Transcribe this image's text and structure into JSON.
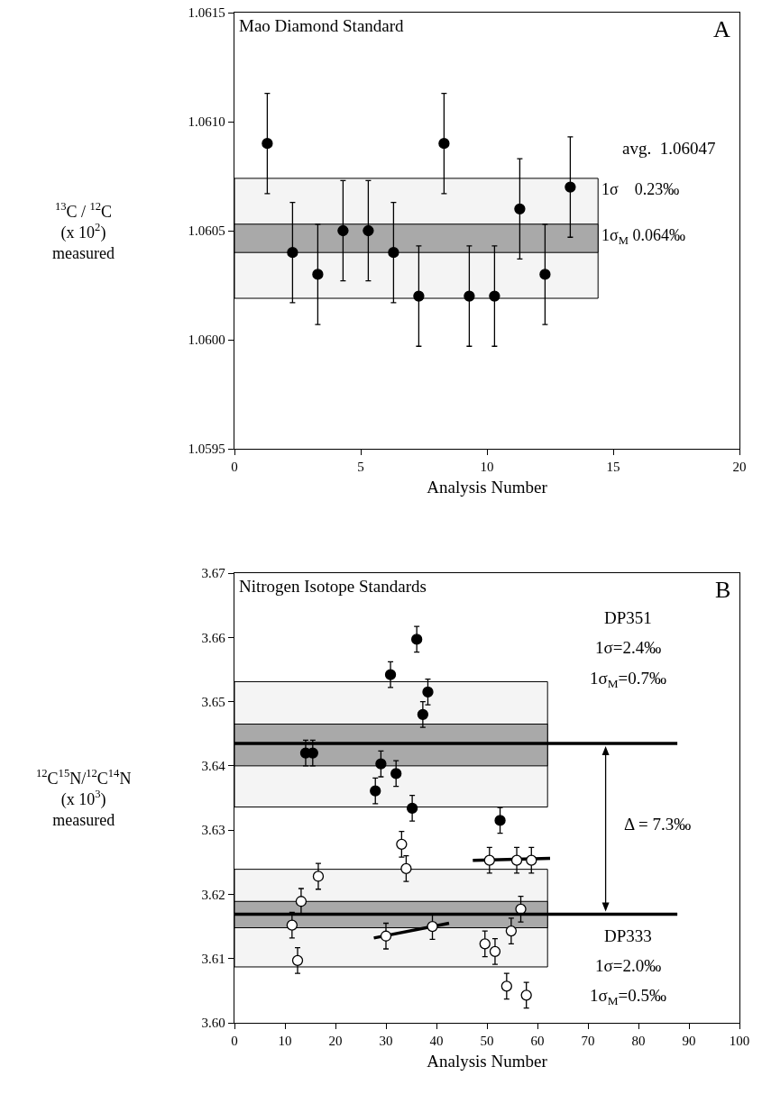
{
  "chart_data": [
    {
      "type": "scatter",
      "title": "Mao Diamond Standard",
      "xlabel": "Analysis Number",
      "ylabel": "$^{13}$C / $^{12}$C\n(x 10$^{2}$)\nmeasured",
      "annotations": [
        "A",
        "avg.  1.06047"
      ],
      "x": [
        1.3,
        2.3,
        3.3,
        4.3,
        5.3,
        6.3,
        7.3,
        8.3,
        9.3,
        10.3,
        11.3,
        12.3,
        13.3
      ],
      "series": [
        {
          "color": "#000000",
          "values": [
            1.0609,
            1.0604,
            1.0603,
            1.0605,
            1.0605,
            1.0604,
            1.0602,
            1.0609,
            1.0602,
            1.0602,
            1.0606,
            1.0603,
            1.0607
          ],
          "errors": [
            0.00023,
            0.00023,
            0.00023,
            0.00023,
            0.00023,
            0.00023,
            0.00023,
            0.00023,
            0.00023,
            0.00023,
            0.00023,
            0.00023,
            0.00023
          ]
        }
      ],
      "bands": [
        {
          "axis": "y",
          "from": 1.06019,
          "to": 1.06074,
          "label": "1σ    0.23‰",
          "color": "#f4f4f4"
        },
        {
          "axis": "y",
          "from": 1.0604,
          "to": 1.06053,
          "label": "1σ$_{M}$ 0.064‰",
          "color": "#a9a9a9"
        }
      ],
      "marker": "circle",
      "grid": false,
      "xlim": [
        0,
        20
      ],
      "xticks": [
        0,
        5,
        10,
        15,
        20
      ],
      "ylim": [
        1.0595,
        1.0615
      ],
      "yticks": [
        1.0595,
        {
          "value": 1.06,
          "label": "1.0600"
        },
        1.0605,
        {
          "value": 1.061,
          "label": "1.0610"
        },
        1.0615
      ]
    },
    {
      "type": "scatter",
      "title": "Nitrogen Isotope Standards",
      "xlabel": "Analysis Number",
      "ylabel": "$^{12}$C$^{15}$N/$^{12}$C$^{14}$N\n(x 10$^{3}$)\nmeasured",
      "annotations": [
        "B",
        "DP351",
        "1σ=2.4‰",
        "1σ$_{M}$=0.7‰",
        "Δ = 7.3‰",
        "DP333",
        "1σ=2.0‰",
        "1σ$_{M}$=0.5‰"
      ],
      "series": [
        {
          "color": "#000000",
          "x": [
            14.1,
            15.5,
            27.9,
            29.0,
            30.9,
            32.0,
            35.2,
            36.1,
            37.3,
            38.3,
            52.6
          ],
          "values": [
            3.642,
            3.642,
            3.6361,
            3.6403,
            3.6542,
            3.6388,
            3.6334,
            3.6597,
            3.648,
            3.6515,
            3.6315
          ],
          "errors": [
            0.002,
            0.002,
            0.002,
            0.002,
            0.002,
            0.002,
            0.002,
            0.002,
            0.002,
            0.002,
            0.002
          ]
        },
        {
          "color": "#ffffff",
          "x": [
            11.4,
            12.5,
            13.2,
            16.6,
            30.0,
            33.1,
            34.0,
            39.2,
            49.6,
            50.5,
            51.6,
            53.9,
            54.8,
            55.9,
            56.7,
            57.8,
            58.8
          ],
          "values": [
            3.6152,
            3.6097,
            3.6189,
            3.6228,
            3.6135,
            3.6278,
            3.624,
            3.615,
            3.6123,
            3.6253,
            3.6111,
            3.6057,
            3.6143,
            3.6253,
            3.6177,
            3.6043,
            3.6253
          ],
          "errors": [
            0.002,
            0.002,
            0.002,
            0.002,
            0.002,
            0.002,
            0.002,
            0.002,
            0.002,
            0.002,
            0.002,
            0.002,
            0.002,
            0.002,
            0.002,
            0.002,
            0.002
          ]
        },
        {
          "type": "line",
          "marker": "none",
          "color": "#000000",
          "x": [
            27.6,
            42.5
          ],
          "values": [
            3.6132,
            3.6155
          ]
        },
        {
          "type": "line",
          "marker": "none",
          "color": "#000000",
          "x": [
            47.2,
            62.5
          ],
          "values": [
            3.6253,
            3.6256
          ]
        }
      ],
      "bands": [
        {
          "axis": "y",
          "from": 3.6336,
          "to": 3.6531,
          "color": "#f4f4f4"
        },
        {
          "axis": "y",
          "from": 3.64,
          "to": 3.6465,
          "color": "#a9a9a9"
        },
        {
          "axis": "y",
          "from": 3.6087,
          "to": 3.6239,
          "color": "#f4f4f4"
        },
        {
          "axis": "y",
          "from": 3.6148,
          "to": 3.6189,
          "color": "#a9a9a9"
        }
      ],
      "ref_lines": [
        {
          "axis": "y",
          "value": 3.6435,
          "color": "#000000"
        },
        {
          "axis": "y",
          "value": 3.6169,
          "color": "#000000"
        }
      ],
      "marker": "circle",
      "grid": false,
      "xlim": [
        0,
        100
      ],
      "xticks": [
        0,
        10,
        20,
        30,
        40,
        50,
        60,
        70,
        80,
        90,
        100
      ],
      "ylim": [
        3.6,
        3.67
      ],
      "yticks": [
        {
          "value": 3.6,
          "label": "3.60"
        },
        3.61,
        3.62,
        3.63,
        3.64,
        3.65,
        3.66,
        3.67
      ]
    }
  ]
}
